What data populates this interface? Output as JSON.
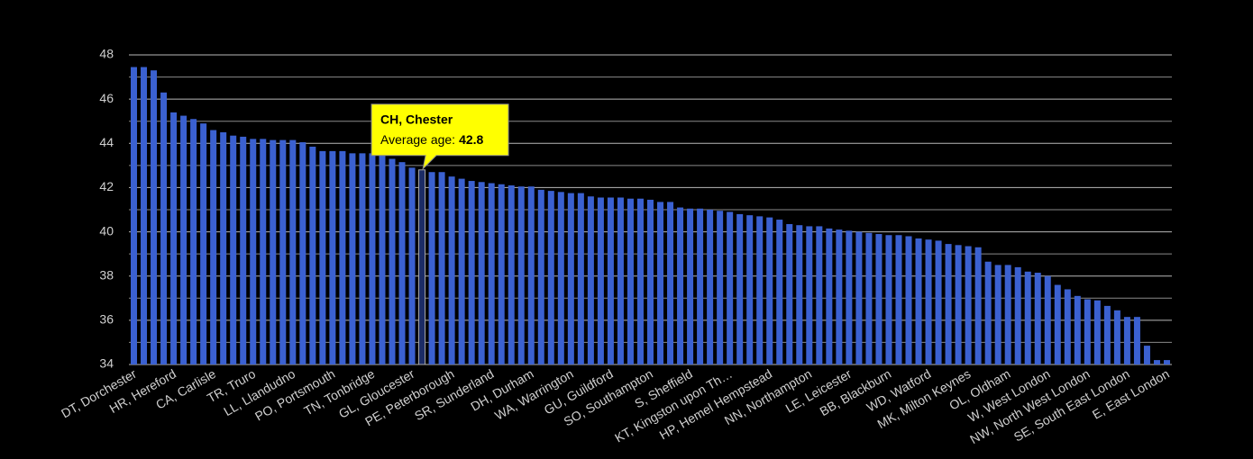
{
  "chart_data": {
    "type": "bar",
    "categories": [
      "DT, Dorchester",
      null,
      null,
      null,
      "HR, Hereford",
      null,
      null,
      null,
      "CA, Carlisle",
      null,
      null,
      null,
      "TR, Truro",
      null,
      null,
      null,
      "LL, Llandudno",
      null,
      null,
      null,
      "PO, Portsmouth",
      null,
      null,
      null,
      "TN, Tonbridge",
      null,
      null,
      null,
      "GL, Gloucester",
      null,
      null,
      null,
      "PE, Peterborough",
      null,
      null,
      null,
      "SR, Sunderland",
      null,
      null,
      null,
      "DH, Durham",
      null,
      null,
      null,
      "WA, Warrington",
      null,
      null,
      null,
      "GU, Guildford",
      null,
      null,
      null,
      "SO, Southampton",
      null,
      null,
      null,
      "S, Sheffield",
      null,
      null,
      null,
      "KT, Kingston upon Th…",
      null,
      null,
      null,
      "HP, Hemel Hempstead",
      null,
      null,
      null,
      "NN, Northampton",
      null,
      null,
      null,
      "LE, Leicester",
      null,
      null,
      null,
      "BB, Blackburn",
      null,
      null,
      null,
      "WD, Watford",
      null,
      null,
      null,
      "MK, Milton Keynes",
      null,
      null,
      null,
      "OL, Oldham",
      null,
      null,
      null,
      "W, West London",
      null,
      null,
      null,
      "NW, North West London",
      null,
      null,
      null,
      "SE, South East London",
      null,
      null,
      null,
      "E, East London"
    ],
    "values": [
      47.45,
      47.45,
      47.3,
      46.3,
      45.4,
      45.25,
      45.1,
      44.9,
      44.6,
      44.5,
      44.35,
      44.3,
      44.2,
      44.2,
      44.15,
      44.15,
      44.15,
      44.05,
      43.85,
      43.65,
      43.65,
      43.65,
      43.55,
      43.55,
      43.55,
      43.45,
      43.3,
      43.15,
      42.9,
      42.8,
      42.7,
      42.7,
      42.5,
      42.4,
      42.3,
      42.25,
      42.2,
      42.15,
      42.1,
      42.05,
      42.05,
      41.9,
      41.85,
      41.8,
      41.75,
      41.75,
      41.6,
      41.55,
      41.55,
      41.55,
      41.5,
      41.5,
      41.45,
      41.35,
      41.35,
      41.1,
      41.05,
      41.05,
      41.0,
      40.95,
      40.9,
      40.8,
      40.75,
      40.7,
      40.65,
      40.55,
      40.35,
      40.3,
      40.25,
      40.25,
      40.15,
      40.1,
      40.05,
      40.0,
      39.95,
      39.9,
      39.85,
      39.85,
      39.8,
      39.7,
      39.65,
      39.6,
      39.45,
      39.4,
      39.35,
      39.3,
      38.65,
      38.5,
      38.5,
      38.4,
      38.2,
      38.15,
      38.0,
      37.6,
      37.4,
      37.1,
      36.95,
      36.9,
      36.65,
      36.45,
      36.15,
      36.15,
      34.85,
      34.2,
      34.2
    ],
    "color": "#3b61d1",
    "highlight_color": "#1c2c66",
    "ylim": [
      34,
      48
    ],
    "yticks": [
      34,
      36,
      38,
      40,
      42,
      44,
      46,
      48
    ],
    "minor_yticks": [
      35,
      37,
      39,
      41,
      43,
      45,
      47
    ],
    "grid": true,
    "tooltip": {
      "title": "CH, Chester",
      "label": "Average age:",
      "index": 29
    }
  }
}
